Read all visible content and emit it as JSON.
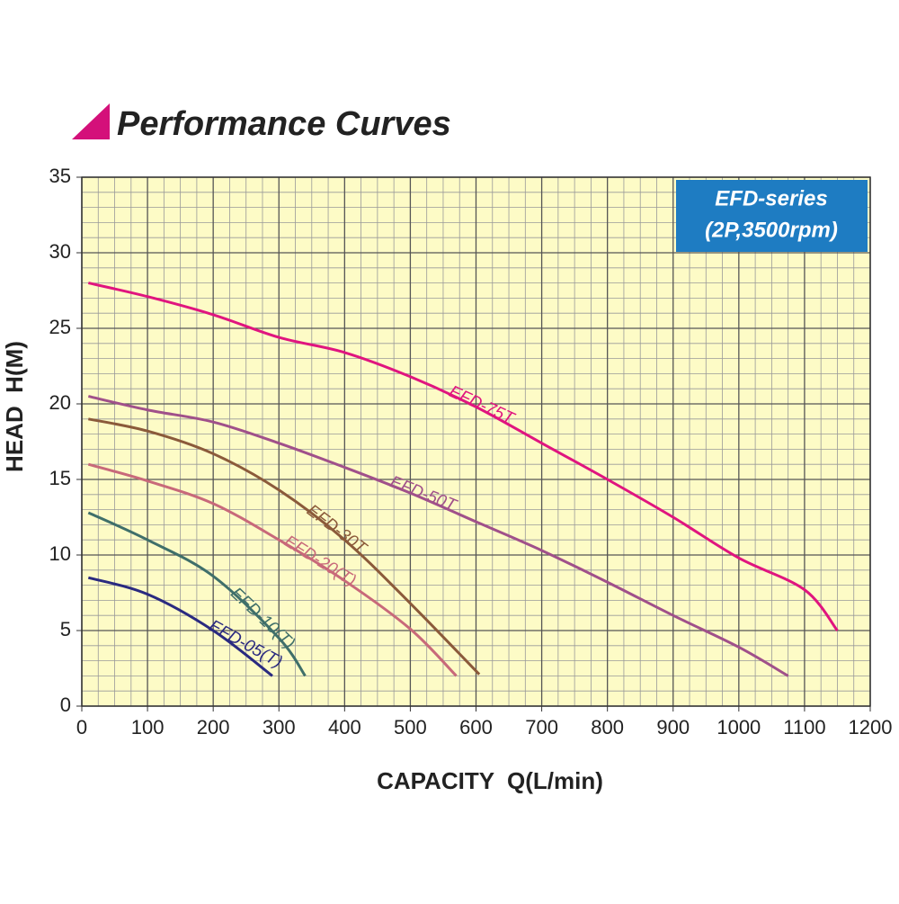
{
  "chart_data": {
    "type": "line",
    "title": "Performance Curves",
    "info_box": [
      "EFD-series",
      "(2P,3500rpm)"
    ],
    "xlabel": "CAPACITY  Q(L/min)",
    "ylabel": "HEAD  H(M)",
    "xlim": [
      0,
      1200
    ],
    "ylim": [
      0,
      35
    ],
    "xticks": [
      0,
      100,
      200,
      300,
      400,
      500,
      600,
      700,
      800,
      900,
      1000,
      1100,
      1200
    ],
    "yticks": [
      0,
      5,
      10,
      15,
      20,
      25,
      30,
      35
    ],
    "grid": true,
    "minor_divisions": {
      "x": 4,
      "y": 5
    },
    "series": [
      {
        "name": "EFD-75T",
        "color": "#e0157f",
        "x": [
          10,
          100,
          200,
          300,
          400,
          500,
          600,
          700,
          800,
          900,
          1000,
          1100,
          1150
        ],
        "values": [
          28,
          27.1,
          25.9,
          24.4,
          23.4,
          21.8,
          19.8,
          17.4,
          15,
          12.5,
          9.8,
          7.7,
          5
        ]
      },
      {
        "name": "EFD-50T",
        "color": "#a0508a",
        "x": [
          10,
          100,
          200,
          300,
          400,
          500,
          600,
          700,
          800,
          900,
          1000,
          1075
        ],
        "values": [
          20.5,
          19.6,
          18.8,
          17.4,
          15.8,
          14.1,
          12.2,
          10.3,
          8.2,
          6,
          3.9,
          2
        ]
      },
      {
        "name": "EFD-30T",
        "color": "#8b5a3a",
        "x": [
          10,
          100,
          200,
          300,
          400,
          500,
          605
        ],
        "values": [
          19,
          18.2,
          16.7,
          14.3,
          11,
          6.8,
          2.1
        ]
      },
      {
        "name": "EFD-20(T)",
        "color": "#c8697a",
        "x": [
          10,
          100,
          200,
          300,
          400,
          500,
          570
        ],
        "values": [
          16,
          14.9,
          13.4,
          11,
          8.3,
          5.1,
          2
        ]
      },
      {
        "name": "EFD-10(T)",
        "color": "#3f6f6a",
        "x": [
          10,
          100,
          200,
          300,
          340
        ],
        "values": [
          12.8,
          11,
          8.6,
          4.5,
          2
        ]
      },
      {
        "name": "EFD-05(T)",
        "color": "#2a2a80",
        "x": [
          10,
          100,
          200,
          290
        ],
        "values": [
          8.5,
          7.4,
          5,
          2
        ]
      }
    ]
  }
}
